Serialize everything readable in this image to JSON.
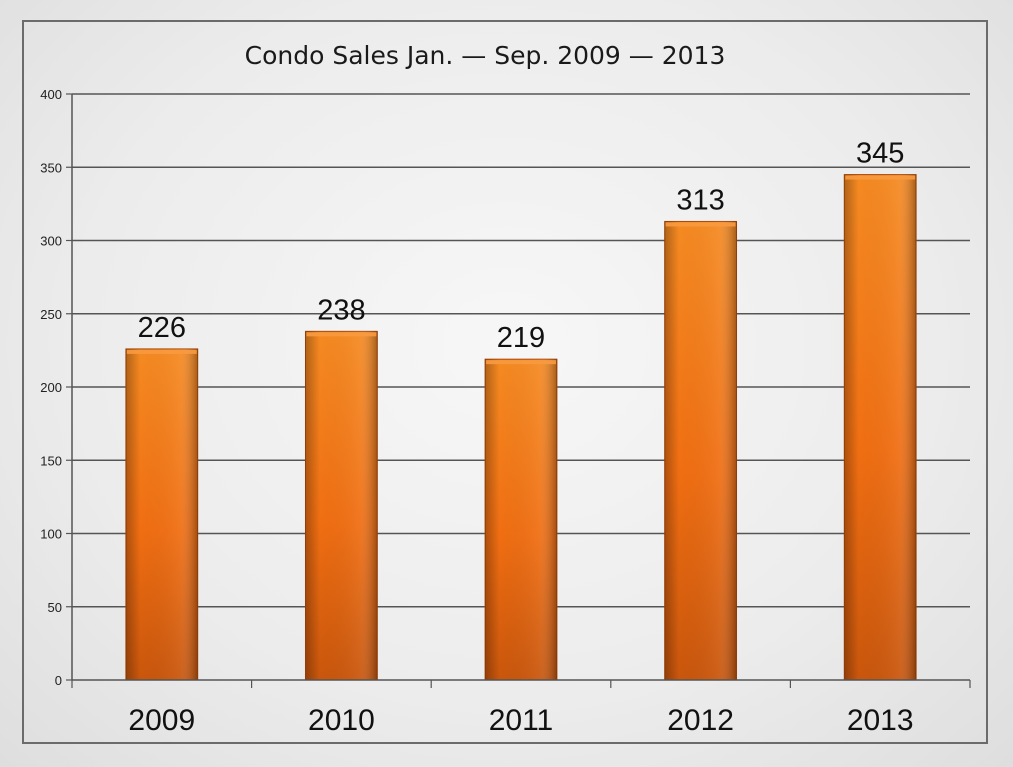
{
  "chart_data": {
    "type": "bar",
    "title": "Condo Sales Jan. — Sep. 2009 — 2013",
    "categories": [
      "2009",
      "2010",
      "2011",
      "2012",
      "2013"
    ],
    "values": [
      226,
      238,
      219,
      313,
      345
    ],
    "data_labels": [
      "226",
      "238",
      "219",
      "313",
      "345"
    ],
    "ylim": [
      0,
      400
    ],
    "yticks": [
      0,
      50,
      100,
      150,
      200,
      250,
      300,
      350,
      400
    ],
    "xlabel": "",
    "ylabel": "",
    "grid": true,
    "legend": "none",
    "bar_color": "#f07010",
    "bar_color_dark": "#b8470a",
    "bar_color_light": "#f89a40"
  }
}
